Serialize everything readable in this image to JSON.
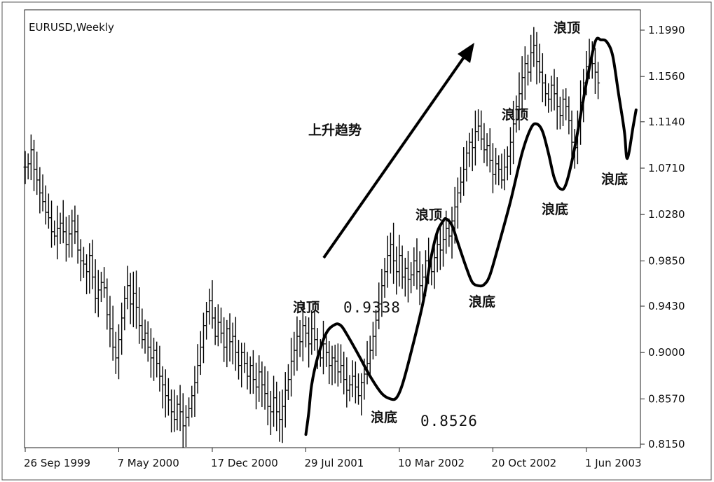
{
  "chart_data": {
    "type": "bar",
    "subtype": "ohlc",
    "title": "EURUSD,Weekly",
    "y_ticks": [
      "1.1990",
      "1.1560",
      "1.1140",
      "1.0710",
      "1.0280",
      "0.9850",
      "0.9430",
      "0.9000",
      "0.8570",
      "0.8150"
    ],
    "ylim": [
      0.815,
      1.218
    ],
    "x_ticks": [
      "26 Sep 1999",
      "7 May 2000",
      "17 Dec 2000",
      "29 Jul 2001",
      "10 Mar 2002",
      "20 Oct 2002",
      "1 Jun 2003"
    ],
    "x_tick_weeks": [
      0,
      32,
      64,
      96,
      128,
      160,
      192
    ],
    "xlim": [
      0,
      210
    ],
    "grid": false,
    "series": [
      {
        "values": [
          1.072,
          1.075,
          1.088,
          1.07,
          1.06,
          1.048,
          1.04,
          1.03,
          1.025,
          1.012,
          1.008,
          1.015,
          1.02,
          1.012,
          1.0,
          1.01,
          1.022,
          1.012,
          0.995,
          0.985,
          0.982,
          0.975,
          0.99,
          0.97,
          0.95,
          0.958,
          0.965,
          0.96,
          0.935,
          0.922,
          0.905,
          0.895,
          0.912,
          0.932,
          0.95,
          0.962,
          0.945,
          0.955,
          0.942,
          0.925,
          0.912,
          0.918,
          0.905,
          0.895,
          0.902,
          0.89,
          0.878,
          0.87,
          0.86,
          0.856,
          0.845,
          0.838,
          0.852,
          0.845,
          0.832,
          0.84,
          0.848,
          0.86,
          0.872,
          0.888,
          0.905,
          0.925,
          0.938,
          0.948,
          0.932,
          0.915,
          0.928,
          0.918,
          0.905,
          0.922,
          0.91,
          0.915,
          0.9,
          0.888,
          0.9,
          0.89,
          0.878,
          0.888,
          0.875,
          0.868,
          0.882,
          0.87,
          0.862,
          0.85,
          0.845,
          0.858,
          0.845,
          0.838,
          0.85,
          0.865,
          0.875,
          0.892,
          0.902,
          0.915,
          0.91,
          0.925,
          0.918,
          0.908,
          0.922,
          0.912,
          0.9,
          0.895,
          0.908,
          0.9,
          0.888,
          0.895,
          0.892,
          0.882,
          0.888,
          0.875,
          0.865,
          0.87,
          0.878,
          0.868,
          0.86,
          0.872,
          0.88,
          0.89,
          0.902,
          0.915,
          0.93,
          0.945,
          0.962,
          0.975,
          0.99,
          1.0,
          0.985,
          0.975,
          0.99,
          0.97,
          0.978,
          0.968,
          0.972,
          0.985,
          0.975,
          0.962,
          0.97,
          0.985,
          0.98,
          0.975,
          0.988,
          1.0,
          0.995,
          1.005,
          1.015,
          1.008,
          1.022,
          1.035,
          1.048,
          1.058,
          1.07,
          1.085,
          1.095,
          1.09,
          1.105,
          1.11,
          1.098,
          1.088,
          1.092,
          1.078,
          1.065,
          1.075,
          1.07,
          1.06,
          1.072,
          1.082,
          1.095,
          1.112,
          1.128,
          1.14,
          1.155,
          1.168,
          1.16,
          1.178,
          1.185,
          1.17,
          1.16,
          1.15,
          1.14,
          1.135,
          1.148,
          1.14,
          1.128,
          1.12,
          1.135,
          1.128,
          1.115,
          1.095,
          1.09,
          1.11,
          1.132,
          1.15,
          1.165,
          1.172,
          1.168,
          1.16,
          1.15
        ]
      }
    ],
    "wave_path": [
      [
        96,
        0.824
      ],
      [
        97,
        0.844
      ],
      [
        98,
        0.87
      ],
      [
        100,
        0.895
      ],
      [
        103,
        0.918
      ],
      [
        106,
        0.926
      ],
      [
        108,
        0.925
      ],
      [
        110,
        0.917
      ],
      [
        114,
        0.898
      ],
      [
        118,
        0.878
      ],
      [
        122,
        0.862
      ],
      [
        125,
        0.857
      ],
      [
        127,
        0.858
      ],
      [
        129,
        0.87
      ],
      [
        132,
        0.9
      ],
      [
        136,
        0.945
      ],
      [
        139,
        0.99
      ],
      [
        141,
        1.012
      ],
      [
        143,
        1.022
      ],
      [
        144,
        1.024
      ],
      [
        146,
        1.018
      ],
      [
        148,
        1.002
      ],
      [
        151,
        0.978
      ],
      [
        153,
        0.965
      ],
      [
        155,
        0.962
      ],
      [
        157,
        0.963
      ],
      [
        159,
        0.972
      ],
      [
        162,
        1.0
      ],
      [
        166,
        1.04
      ],
      [
        170,
        1.085
      ],
      [
        173,
        1.108
      ],
      [
        175,
        1.112
      ],
      [
        177,
        1.105
      ],
      [
        179,
        1.085
      ],
      [
        181,
        1.062
      ],
      [
        183,
        1.052
      ],
      [
        185,
        1.056
      ],
      [
        188,
        1.09
      ],
      [
        192,
        1.15
      ],
      [
        195,
        1.188
      ],
      [
        197,
        1.19
      ],
      [
        199,
        1.188
      ],
      [
        201,
        1.175
      ],
      [
        203,
        1.14
      ],
      [
        205,
        1.105
      ],
      [
        206,
        1.08
      ],
      [
        208,
        1.11
      ],
      [
        209,
        1.125
      ]
    ],
    "annotations": {
      "peak_1": {
        "label": "浪顶",
        "value": "0.9338"
      },
      "trough_1": {
        "label": "浪底",
        "value": "0.8526"
      },
      "peak_2": {
        "label": "浪顶"
      },
      "trough_2": {
        "label": "浪底"
      },
      "peak_3": {
        "label": "浪顶"
      },
      "trough_3": {
        "label": "浪底"
      },
      "peak_4": {
        "label": "浪顶"
      },
      "trough_4": {
        "label": "浪底"
      },
      "trend": {
        "label": "上升趋势"
      }
    }
  }
}
